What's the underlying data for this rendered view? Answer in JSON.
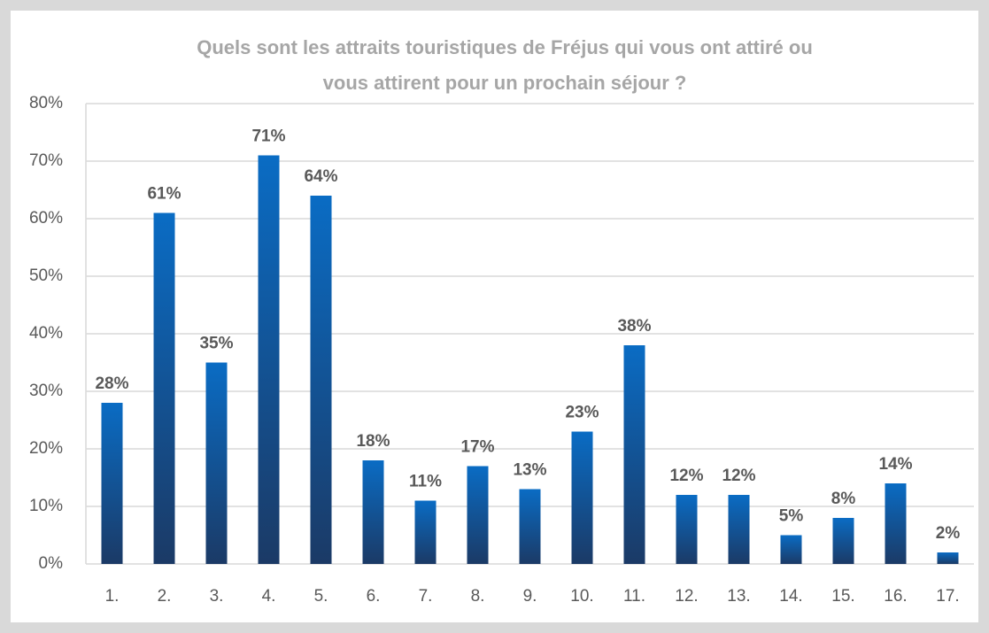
{
  "chart_data": {
    "type": "bar",
    "title": [
      "Quels sont les attraits touristiques de Fréjus qui vous ont attiré ou",
      "vous attirent pour un prochain séjour ?"
    ],
    "categories": [
      "1.",
      "2.",
      "3.",
      "4.",
      "5.",
      "6.",
      "7.",
      "8.",
      "9.",
      "10.",
      "11.",
      "12.",
      "13.",
      "14.",
      "15.",
      "16.",
      "17."
    ],
    "values": [
      28,
      61,
      35,
      71,
      64,
      18,
      11,
      17,
      13,
      23,
      38,
      12,
      12,
      5,
      8,
      14,
      2
    ],
    "value_labels": [
      "28%",
      "61%",
      "35%",
      "71%",
      "64%",
      "18%",
      "11%",
      "17%",
      "13%",
      "23%",
      "38%",
      "12%",
      "12%",
      "5%",
      "8%",
      "14%",
      "2%"
    ],
    "color": "#0a66b8",
    "ylim": [
      0,
      80
    ],
    "yticks": [
      {
        "value": 0,
        "label": "0%"
      },
      {
        "value": 10,
        "label": "10%"
      },
      {
        "value": 20,
        "label": "20%"
      },
      {
        "value": 30,
        "label": "30%"
      },
      {
        "value": 40,
        "label": "40%"
      },
      {
        "value": 50,
        "label": "50%"
      },
      {
        "value": 60,
        "label": "60%"
      },
      {
        "value": 70,
        "label": "70%"
      },
      {
        "value": 80,
        "label": "80%"
      }
    ],
    "grid": true
  }
}
